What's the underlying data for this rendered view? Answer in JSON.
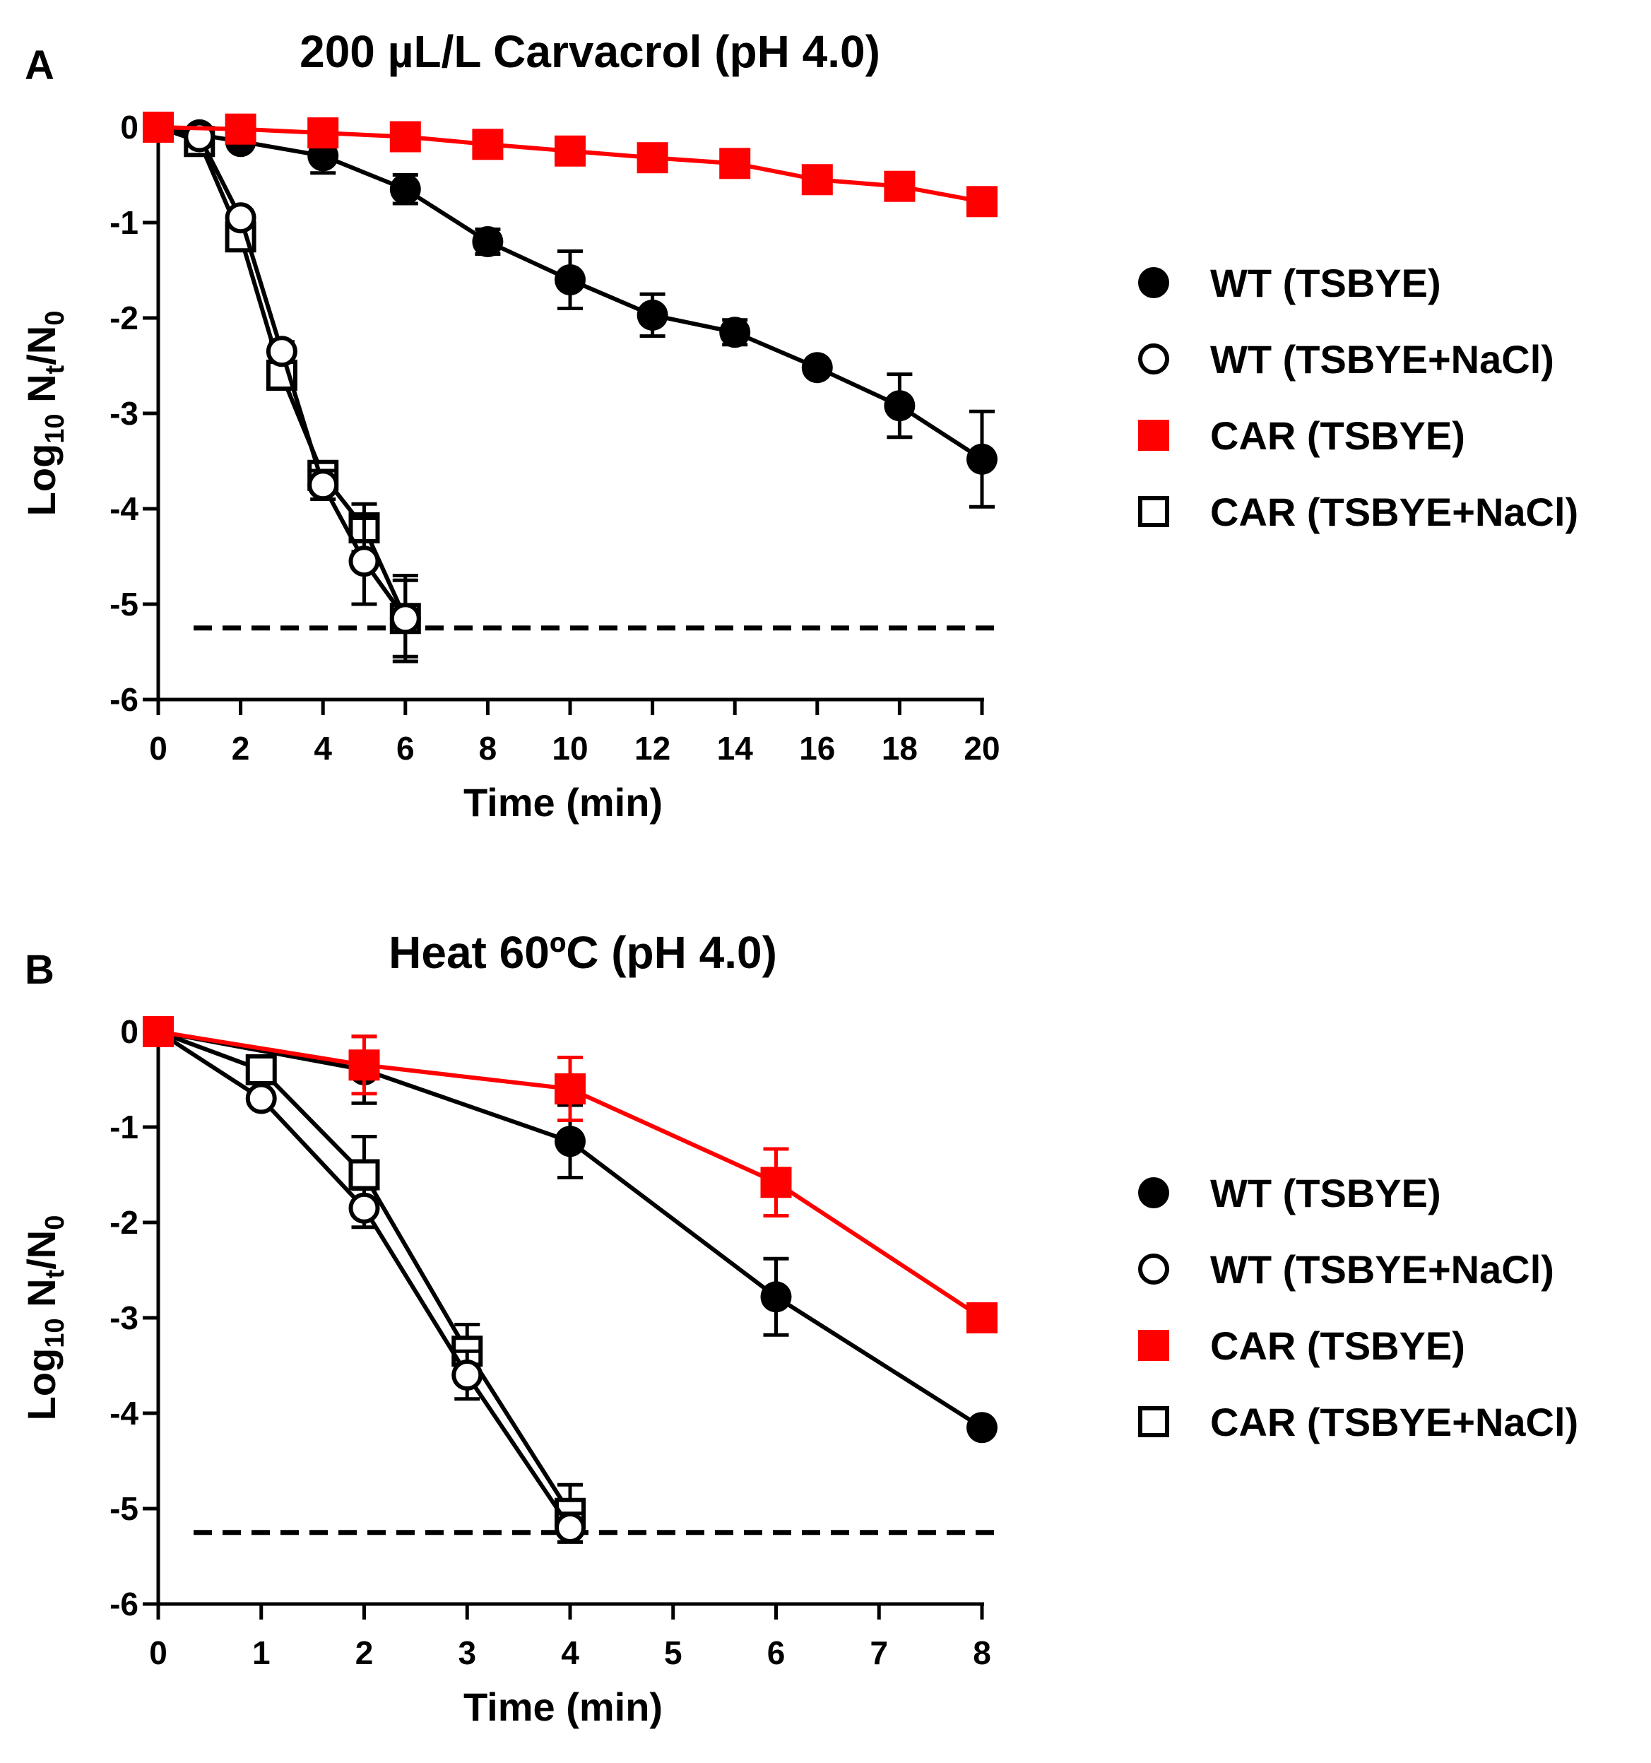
{
  "chart_data": [
    {
      "type": "line",
      "panel_label": "A",
      "title": "200 µL/L Carvacrol (pH 4.0)",
      "xlabel": "Time (min)",
      "ylabel": {
        "base": "Log",
        "sub1": "10",
        "mid": " N",
        "sub2": "t",
        "slash": "/N",
        "sub3": "0"
      },
      "xlim": [
        0,
        20
      ],
      "ylim": [
        -6,
        0
      ],
      "xticks": [
        0,
        2,
        4,
        6,
        8,
        10,
        12,
        14,
        16,
        18,
        20
      ],
      "yticks": [
        0,
        -1,
        -2,
        -3,
        -4,
        -5,
        -6
      ],
      "detection_limit": -5.25,
      "legend_placement": "right",
      "series": [
        {
          "name": "WT (TSBYE)",
          "marker": "filled-circle",
          "color": "#000000",
          "x": [
            0,
            1,
            2,
            4,
            6,
            8,
            10,
            12,
            14,
            16,
            18,
            20
          ],
          "y": [
            0,
            -0.08,
            -0.15,
            -0.3,
            -0.65,
            -1.2,
            -1.6,
            -1.97,
            -2.15,
            -2.52,
            -2.92,
            -3.48
          ],
          "err": [
            0.05,
            0.05,
            0.05,
            0.18,
            0.15,
            0.13,
            0.3,
            0.22,
            0.13,
            0.04,
            0.33,
            0.5
          ]
        },
        {
          "name": "WT (TSBYE+NaCl)",
          "marker": "open-circle",
          "color": "#000000",
          "x": [
            0,
            1,
            2,
            3,
            4,
            5,
            6
          ],
          "y": [
            0,
            -0.1,
            -0.95,
            -2.35,
            -3.75,
            -4.55,
            -5.15
          ],
          "err": [
            0.03,
            0.05,
            0.08,
            0.1,
            0.15,
            0.45,
            0.4
          ]
        },
        {
          "name": "CAR (TSBYE)",
          "marker": "filled-square",
          "color": "#ff0000",
          "x": [
            0,
            2,
            4,
            6,
            8,
            10,
            12,
            14,
            16,
            18,
            20
          ],
          "y": [
            0,
            -0.02,
            -0.06,
            -0.1,
            -0.18,
            -0.25,
            -0.32,
            -0.38,
            -0.55,
            -0.62,
            -0.78
          ],
          "err": [
            0.02,
            0.02,
            0.03,
            0.03,
            0.04,
            0.04,
            0.05,
            0.05,
            0.05,
            0.05,
            0.05
          ]
        },
        {
          "name": "CAR (TSBYE+NaCl)",
          "marker": "open-square",
          "color": "#000000",
          "x": [
            0,
            1,
            2,
            3,
            4,
            5,
            6
          ],
          "y": [
            0,
            -0.15,
            -1.15,
            -2.6,
            -3.65,
            -4.2,
            -5.15
          ],
          "err": [
            0.03,
            0.05,
            0.08,
            0.1,
            0.12,
            0.25,
            0.45
          ]
        }
      ]
    },
    {
      "type": "line",
      "panel_label": "B",
      "title": "Heat 60ºC (pH 4.0)",
      "xlabel": "Time (min)",
      "ylabel": {
        "base": "Log",
        "sub1": "10",
        "mid": " N",
        "sub2": "t",
        "slash": "/N",
        "sub3": "0"
      },
      "xlim": [
        0,
        8
      ],
      "ylim": [
        -6,
        0
      ],
      "xticks": [
        0,
        1,
        2,
        3,
        4,
        5,
        6,
        7,
        8
      ],
      "yticks": [
        0,
        -1,
        -2,
        -3,
        -4,
        -5,
        -6
      ],
      "detection_limit": -5.25,
      "legend_placement": "right",
      "series": [
        {
          "name": "WT (TSBYE)",
          "marker": "filled-circle",
          "color": "#000000",
          "x": [
            0,
            2,
            4,
            6,
            8
          ],
          "y": [
            0,
            -0.4,
            -1.15,
            -2.78,
            -4.15
          ],
          "err": [
            0.03,
            0.35,
            0.38,
            0.4,
            0.05
          ]
        },
        {
          "name": "WT (TSBYE+NaCl)",
          "marker": "open-circle",
          "color": "#000000",
          "x": [
            0,
            1,
            2,
            3,
            4
          ],
          "y": [
            0,
            -0.7,
            -1.85,
            -3.6,
            -5.2
          ],
          "err": [
            0.03,
            0.05,
            0.2,
            0.25,
            0.15
          ]
        },
        {
          "name": "CAR (TSBYE)",
          "marker": "filled-square",
          "color": "#ff0000",
          "x": [
            0,
            2,
            4,
            6,
            8
          ],
          "y": [
            0,
            -0.35,
            -0.6,
            -1.58,
            -3.0
          ],
          "err": [
            0.03,
            0.3,
            0.33,
            0.35,
            0.12
          ]
        },
        {
          "name": "CAR (TSBYE+NaCl)",
          "marker": "open-square",
          "color": "#000000",
          "x": [
            0,
            1,
            2,
            3,
            4
          ],
          "y": [
            0,
            -0.4,
            -1.5,
            -3.35,
            -5.05
          ],
          "err": [
            0.03,
            0.05,
            0.4,
            0.28,
            0.3
          ]
        }
      ]
    }
  ]
}
